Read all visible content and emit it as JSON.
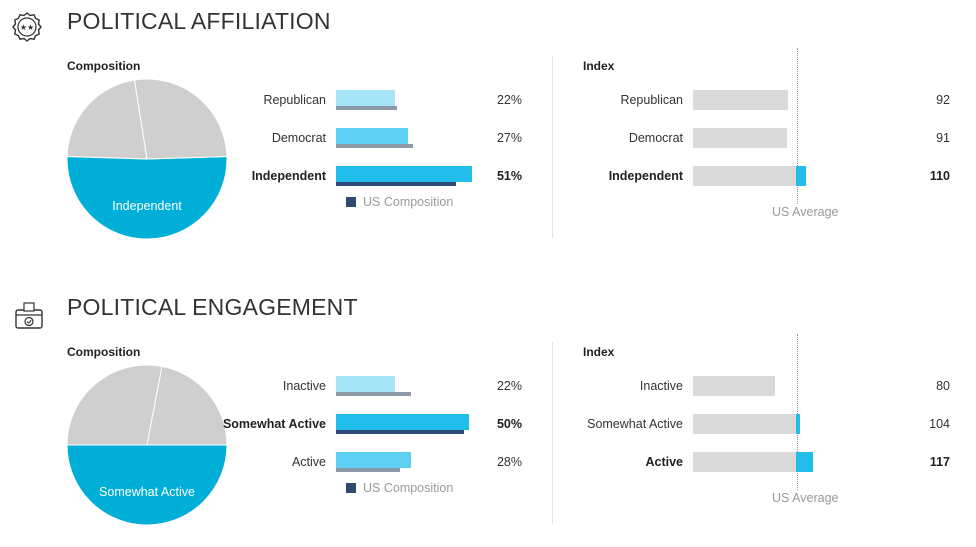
{
  "colors": {
    "pie_gray": "#cfcfcf",
    "pie_blue": "#00afd7",
    "bar_light": "#a6e5f7",
    "bar_mid": "#5fd0f3",
    "bar_strong": "#22bdea",
    "us_dark": "#2c4a74",
    "us_gray": "#8c9aa8",
    "index_track": "#dadada"
  },
  "sections": [
    {
      "title": "POLITICAL AFFILIATION",
      "icon": "seal-badge-icon",
      "composition_label": "Composition",
      "index_label": "Index",
      "legend_label": "US Composition",
      "us_average_label": "US Average",
      "pie_label": "Independent"
    },
    {
      "title": "POLITICAL ENGAGEMENT",
      "icon": "ballot-box-icon",
      "composition_label": "Composition",
      "index_label": "Index",
      "legend_label": "US Composition",
      "us_average_label": "US Average",
      "pie_label": "Somewhat Active"
    }
  ],
  "chart_data": [
    {
      "type": "pie",
      "slices": [
        {
          "label": "Republican",
          "value": 22
        },
        {
          "label": "Democrat",
          "value": 27
        },
        {
          "label": "Independent",
          "value": 51
        }
      ],
      "labeled_slice": "Independent"
    },
    {
      "type": "bar",
      "orientation": "horizontal",
      "categories": [
        "Republican",
        "Democrat",
        "Independent"
      ],
      "values": [
        22,
        27,
        51
      ],
      "labels": [
        "22%",
        "27%",
        "51%"
      ],
      "us_composition": [
        23,
        29,
        45
      ],
      "highlight": "Independent",
      "legend": [
        "US Composition"
      ]
    },
    {
      "type": "bar",
      "orientation": "horizontal",
      "categories": [
        "Republican",
        "Democrat",
        "Independent"
      ],
      "values": [
        92,
        91,
        110
      ],
      "labels": [
        "92",
        "91",
        "110"
      ],
      "reference_value": 100,
      "reference_label": "US Average",
      "highlight": "Independent"
    },
    {
      "type": "pie",
      "slices": [
        {
          "label": "Inactive",
          "value": 22
        },
        {
          "label": "Somewhat Active",
          "value": 50
        },
        {
          "label": "Active",
          "value": 28
        }
      ],
      "labeled_slice": "Somewhat Active"
    },
    {
      "type": "bar",
      "orientation": "horizontal",
      "categories": [
        "Inactive",
        "Somewhat Active",
        "Active"
      ],
      "values": [
        22,
        50,
        28
      ],
      "labels": [
        "22%",
        "50%",
        "28%"
      ],
      "us_composition": [
        28,
        48,
        24
      ],
      "highlight": "Somewhat Active",
      "legend": [
        "US Composition"
      ]
    },
    {
      "type": "bar",
      "orientation": "horizontal",
      "categories": [
        "Inactive",
        "Somewhat Active",
        "Active"
      ],
      "values": [
        80,
        104,
        117
      ],
      "labels": [
        "80",
        "104",
        "117"
      ],
      "reference_value": 100,
      "reference_label": "US Average",
      "highlight": "Active"
    }
  ]
}
